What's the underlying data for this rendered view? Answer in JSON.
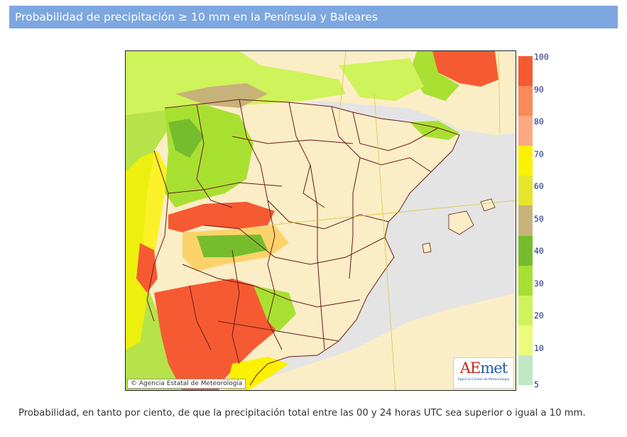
{
  "header": {
    "title": "Probabilidad de precipitación ≥ 10 mm en la Península y Baleares"
  },
  "map": {
    "copyright": "© Agencia Estatal de Meteorología",
    "logo": {
      "word_a": "AE",
      "word_b": "met",
      "subtitle": "Agencia Estatal de Meteorología"
    }
  },
  "legend": {
    "labels": [
      "100",
      "90",
      "80",
      "70",
      "60",
      "50",
      "40",
      "30",
      "20",
      "10",
      "5"
    ],
    "colors": [
      "#f65a32",
      "#fa8a5a",
      "#fca882",
      "#fbf100",
      "#e5e52a",
      "#c7b27a",
      "#75bd2c",
      "#a8e032",
      "#cff35a",
      "#ecfb7c",
      "#bfe8c4"
    ]
  },
  "caption": "Probabilidad, en tanto por ciento, de que la precipitación total entre las 00 y 24 horas UTC sea superior o igual a 10 mm."
}
